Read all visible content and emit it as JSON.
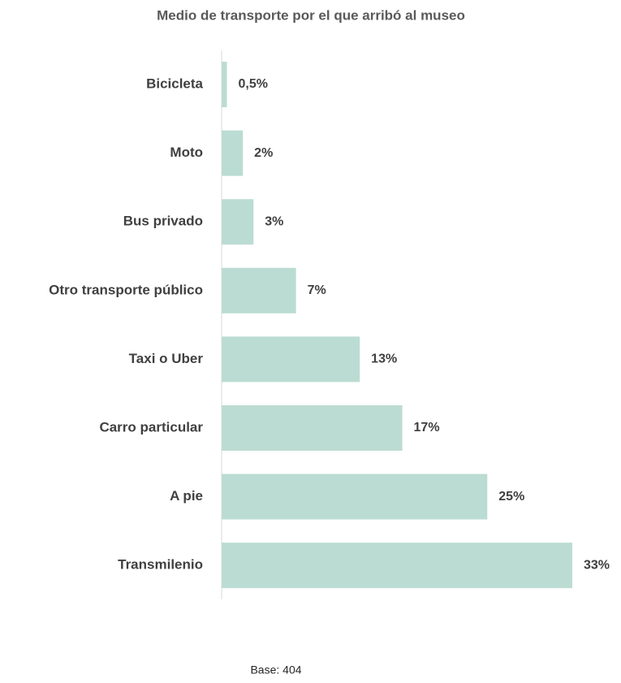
{
  "chart_data": {
    "type": "bar",
    "orientation": "horizontal",
    "title": "Medio de transporte por el que arribó al museo",
    "categories": [
      "Bicicleta",
      "Moto",
      "Bus privado",
      "Otro transporte público",
      "Taxi o Uber",
      "Carro particular",
      "A pie",
      "Transmilenio"
    ],
    "values": [
      0.5,
      2,
      3,
      7,
      13,
      17,
      25,
      33
    ],
    "value_labels": [
      "0,5%",
      "2%",
      "3%",
      "7%",
      "13%",
      "17%",
      "25%",
      "33%"
    ],
    "color": "#bbdcd2",
    "note": "Base: 404"
  }
}
